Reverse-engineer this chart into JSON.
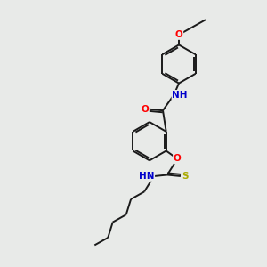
{
  "background_color": "#e8eae8",
  "bond_color": "#1a1a1a",
  "atom_colors": {
    "O": "#ff0000",
    "N": "#0000cc",
    "S": "#aaaa00",
    "C": "#1a1a1a"
  },
  "bond_width": 1.4,
  "font_size": 7.5,
  "figsize": [
    3.0,
    3.0
  ],
  "dpi": 100,
  "xlim": [
    0,
    10
  ],
  "ylim": [
    0,
    10
  ]
}
